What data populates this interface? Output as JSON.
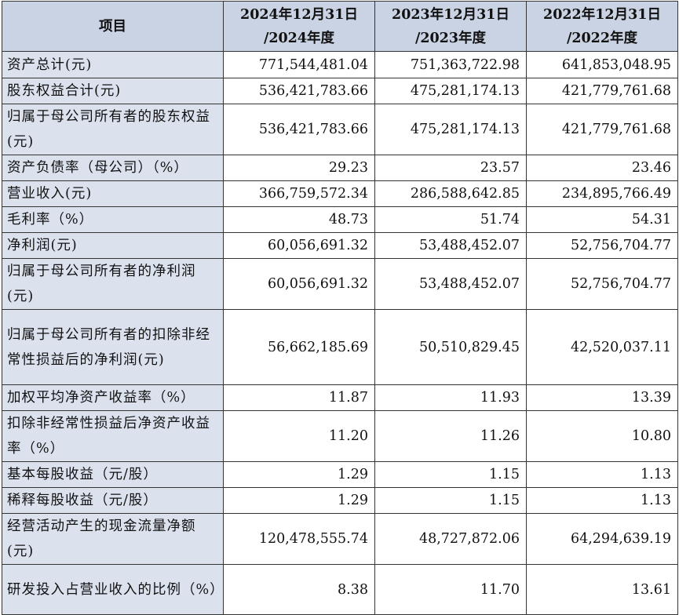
{
  "table": {
    "headers": [
      {
        "line1": "项目",
        "line2": ""
      },
      {
        "line1": "2024年12月31日",
        "line2": "/2024年度"
      },
      {
        "line1": "2023年12月31日",
        "line2": "/2023年度"
      },
      {
        "line1": "2022年12月31日",
        "line2": "/2022年度"
      }
    ],
    "rows": [
      {
        "label": "资产总计(元)",
        "v2024": "771,544,481.04",
        "v2023": "751,363,722.98",
        "v2022": "641,853,048.95"
      },
      {
        "label": "股东权益合计(元)",
        "v2024": "536,421,783.66",
        "v2023": "475,281,174.13",
        "v2022": "421,779,761.68"
      },
      {
        "label": "归属于母公司所有者的股东权益(元)",
        "v2024": "536,421,783.66",
        "v2023": "475,281,174.13",
        "v2022": "421,779,761.68"
      },
      {
        "label": "资产负债率（母公司）（%）",
        "v2024": "29.23",
        "v2023": "23.57",
        "v2022": "23.46"
      },
      {
        "label": "营业收入(元)",
        "v2024": "366,759,572.34",
        "v2023": "286,588,642.85",
        "v2022": "234,895,766.49"
      },
      {
        "label": "毛利率（%）",
        "v2024": "48.73",
        "v2023": "51.74",
        "v2022": "54.31"
      },
      {
        "label": "净利润(元)",
        "v2024": "60,056,691.32",
        "v2023": "53,488,452.07",
        "v2022": "52,756,704.77"
      },
      {
        "label": "归属于母公司所有者的净利润(元)",
        "v2024": "60,056,691.32",
        "v2023": "53,488,452.07",
        "v2022": "52,756,704.77"
      },
      {
        "label": "归属于母公司所有者的扣除非经常性损益后的净利润(元)",
        "v2024": "56,662,185.69",
        "v2023": "50,510,829.45",
        "v2022": "42,520,037.11"
      },
      {
        "label": "加权平均净资产收益率（%）",
        "v2024": "11.87",
        "v2023": "11.93",
        "v2022": "13.39"
      },
      {
        "label": "扣除非经常性损益后净资产收益率（%）",
        "v2024": "11.20",
        "v2023": "11.26",
        "v2022": "10.80"
      },
      {
        "label": "基本每股收益（元/股）",
        "v2024": "1.29",
        "v2023": "1.15",
        "v2022": "1.13"
      },
      {
        "label": "稀释每股收益（元/股）",
        "v2024": "1.29",
        "v2023": "1.15",
        "v2022": "1.13"
      },
      {
        "label": "经营活动产生的现金流量净额(元)",
        "v2024": "120,478,555.74",
        "v2023": "48,727,872.06",
        "v2022": "64,294,639.19"
      },
      {
        "label": "研发投入占营业收入的比例（%）",
        "v2024": "8.38",
        "v2023": "11.70",
        "v2022": "13.61"
      }
    ]
  }
}
